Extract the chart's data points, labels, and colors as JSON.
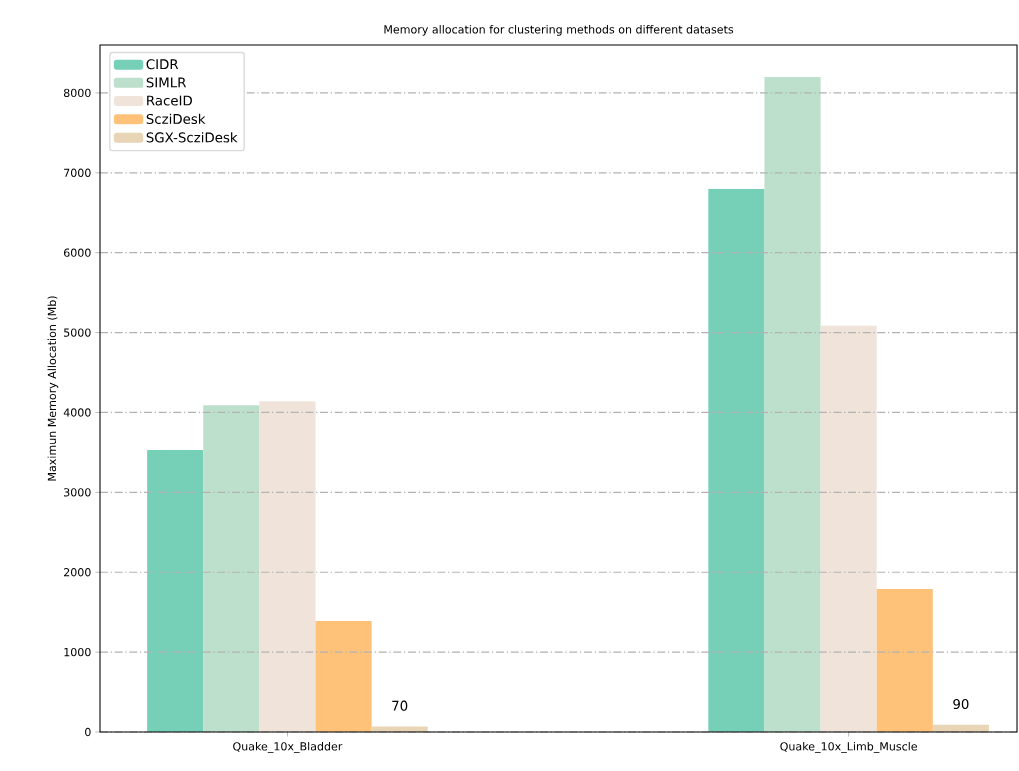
{
  "chart_data": {
    "type": "bar",
    "title": "Memory allocation for clustering methods on different datasets",
    "ylabel": "Maximun Memory Allocation (Mb)",
    "categories": [
      "Quake_10x_Bladder",
      "Quake_10x_Limb_Muscle"
    ],
    "series": [
      {
        "name": "CIDR",
        "color": "#76cfb7",
        "values": [
          3530,
          6800
        ]
      },
      {
        "name": "SIMLR",
        "color": "#bce0cb",
        "values": [
          4090,
          8200
        ]
      },
      {
        "name": "RaceID",
        "color": "#f0e4da",
        "values": [
          4140,
          5090
        ]
      },
      {
        "name": "ScziDesk",
        "color": "#ffc278",
        "values": [
          1390,
          1790
        ]
      },
      {
        "name": "SGX-ScziDesk",
        "color": "#e8d5b5",
        "values": [
          70,
          90
        ],
        "value_labels": [
          "70",
          "90"
        ]
      }
    ],
    "ylim": [
      0,
      8600
    ],
    "yticks": [
      0,
      1000,
      2000,
      3000,
      4000,
      5000,
      6000,
      7000,
      8000
    ],
    "grid": "y",
    "legend": "top left"
  }
}
